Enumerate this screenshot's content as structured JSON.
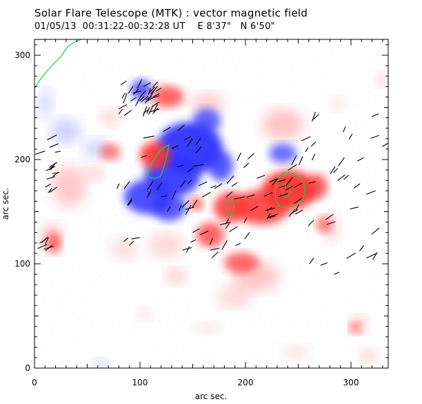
{
  "header": {
    "title": "Solar Flare Telescope (MTK) : vector magnetic field",
    "date": "01/05/13",
    "time_range": "00:31:22-00:32:28 UT",
    "longitude": "E 8'37\"",
    "latitude": "N 6'50\""
  },
  "axes": {
    "xlabel": "arc sec.",
    "ylabel": "arc sec.",
    "xlim": [
      0,
      335
    ],
    "ylim": [
      0,
      315
    ],
    "x_ticks": [
      "0",
      "100",
      "200",
      "300"
    ],
    "y_ticks": [
      "0",
      "100",
      "200",
      "300"
    ]
  },
  "colors": {
    "positive_polarity": "#ff3333",
    "negative_polarity": "#2d33ff",
    "contour": "#22cc44",
    "vector": "#000000"
  }
}
